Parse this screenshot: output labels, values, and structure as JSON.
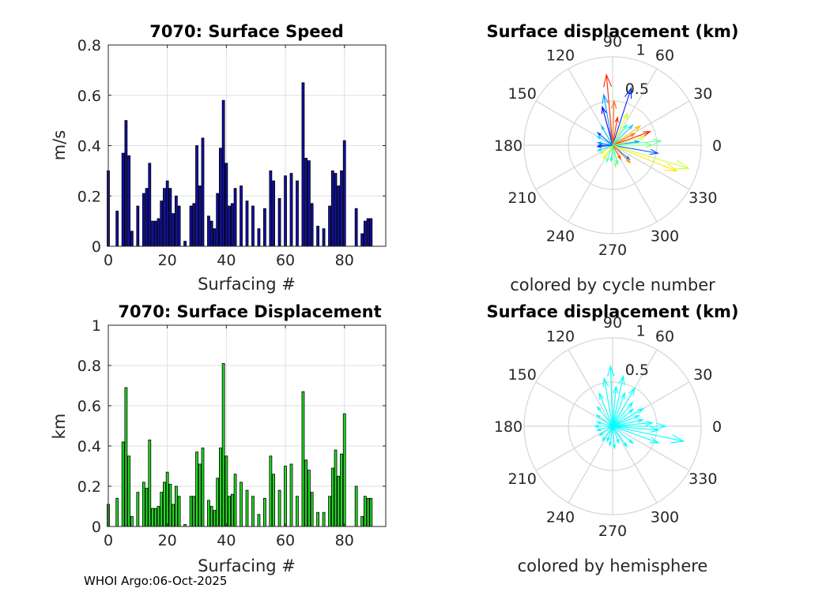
{
  "footer": "WHOI Argo:06-Oct-2025",
  "chart_data": [
    {
      "type": "bar",
      "id": "speed",
      "title": "7070: Surface Speed",
      "xlabel": "Surfacing #",
      "ylabel": "m/s",
      "xlim": [
        0,
        94
      ],
      "ylim": [
        0,
        0.8
      ],
      "xticks": [
        0,
        20,
        40,
        60,
        80
      ],
      "yticks": [
        0,
        0.2,
        0.4,
        0.6,
        0.8
      ],
      "ytick_labels": [
        "0",
        "0.2",
        "0.4",
        "0.6",
        "0.8"
      ],
      "color": "#1010a8",
      "x": [
        0,
        3,
        5,
        6,
        7,
        8,
        10,
        12,
        13,
        14,
        15,
        16,
        17,
        18,
        19,
        20,
        21,
        22,
        23,
        24,
        26,
        28,
        29,
        30,
        31,
        32,
        34,
        35,
        36,
        37,
        38,
        39,
        40,
        41,
        42,
        43,
        45,
        47,
        49,
        51,
        53,
        55,
        56,
        58,
        60,
        62,
        64,
        66,
        67,
        68,
        69,
        71,
        73,
        75,
        76,
        77,
        78,
        79,
        80,
        84,
        86,
        87,
        88,
        89
      ],
      "values": [
        0.3,
        0.14,
        0.37,
        0.5,
        0.36,
        0.06,
        0.16,
        0.21,
        0.23,
        0.33,
        0.1,
        0.1,
        0.11,
        0.18,
        0.23,
        0.26,
        0.23,
        0.13,
        0.2,
        0.16,
        0.02,
        0.16,
        0.17,
        0.4,
        0.24,
        0.43,
        0.12,
        0.1,
        0.07,
        0.21,
        0.39,
        0.58,
        0.33,
        0.16,
        0.17,
        0.23,
        0.24,
        0.18,
        0.16,
        0.07,
        0.15,
        0.3,
        0.26,
        0.19,
        0.28,
        0.29,
        0.26,
        0.65,
        0.35,
        0.34,
        0.17,
        0.08,
        0.07,
        0.16,
        0.3,
        0.29,
        0.24,
        0.3,
        0.42,
        0.15,
        0.05,
        0.1,
        0.11,
        0.11
      ]
    },
    {
      "type": "bar",
      "id": "disp",
      "title": "7070: Surface Displacement",
      "xlabel": "Surfacing #",
      "ylabel": "km",
      "xlim": [
        0,
        94
      ],
      "ylim": [
        0,
        1
      ],
      "xticks": [
        0,
        20,
        40,
        60,
        80
      ],
      "yticks": [
        0,
        0.2,
        0.4,
        0.6,
        0.8,
        1
      ],
      "ytick_labels": [
        "0",
        "0.2",
        "0.4",
        "0.6",
        "0.8",
        "1"
      ],
      "color": "#22dd22",
      "x": [
        0,
        3,
        5,
        6,
        7,
        8,
        10,
        12,
        13,
        14,
        15,
        16,
        17,
        18,
        19,
        20,
        21,
        22,
        23,
        24,
        26,
        28,
        29,
        30,
        31,
        32,
        34,
        35,
        36,
        37,
        38,
        39,
        40,
        41,
        42,
        43,
        45,
        47,
        49,
        51,
        53,
        55,
        56,
        58,
        60,
        62,
        64,
        66,
        67,
        68,
        69,
        71,
        73,
        75,
        76,
        77,
        78,
        79,
        80,
        84,
        86,
        87,
        88,
        89
      ],
      "values": [
        0.11,
        0.14,
        0.42,
        0.69,
        0.35,
        0.05,
        0.17,
        0.22,
        0.19,
        0.43,
        0.09,
        0.09,
        0.1,
        0.17,
        0.22,
        0.27,
        0.21,
        0.11,
        0.2,
        0.15,
        0.01,
        0.15,
        0.15,
        0.37,
        0.31,
        0.39,
        0.13,
        0.1,
        0.08,
        0.24,
        0.39,
        0.81,
        0.35,
        0.15,
        0.16,
        0.26,
        0.22,
        0.18,
        0.15,
        0.06,
        0.14,
        0.35,
        0.26,
        0.18,
        0.3,
        0.31,
        0.15,
        0.67,
        0.33,
        0.28,
        0.17,
        0.07,
        0.07,
        0.15,
        0.29,
        0.38,
        0.25,
        0.36,
        0.56,
        0.2,
        0.05,
        0.15,
        0.14,
        0.14
      ]
    },
    {
      "type": "polar-compass",
      "id": "polar1",
      "title": "Surface displacement (km)",
      "caption": "colored by cycle number",
      "rmax": 1,
      "r_ticks": [
        "0.5",
        "1"
      ],
      "angle_ticks": [
        "0",
        "30",
        "60",
        "90",
        "120",
        "150",
        "180",
        "210",
        "240",
        "270",
        "300",
        "330"
      ],
      "colormap": [
        "#0000ff",
        "#00ffff",
        "#ffff00",
        "#ff0000"
      ],
      "vectors": [
        {
          "angle": 0,
          "r": 0.45,
          "c": 0.5
        },
        {
          "angle": 350,
          "r": 0.52,
          "c": 0.1
        },
        {
          "angle": 343,
          "r": 0.9,
          "c": 0.6
        },
        {
          "angle": 338,
          "r": 0.78,
          "c": 0.7
        },
        {
          "angle": 320,
          "r": 0.25,
          "c": 0.15
        },
        {
          "angle": 315,
          "r": 0.28,
          "c": 0.8
        },
        {
          "angle": 300,
          "r": 0.18,
          "c": 0.9
        },
        {
          "angle": 285,
          "r": 0.22,
          "c": 0.4
        },
        {
          "angle": 278,
          "r": 0.25,
          "c": 0.55
        },
        {
          "angle": 265,
          "r": 0.18,
          "c": 0.35
        },
        {
          "angle": 250,
          "r": 0.2,
          "c": 0.45
        },
        {
          "angle": 235,
          "r": 0.18,
          "c": 0.65
        },
        {
          "angle": 215,
          "r": 0.17,
          "c": 0.6
        },
        {
          "angle": 200,
          "r": 0.18,
          "c": 0.3
        },
        {
          "angle": 185,
          "r": 0.17,
          "c": 0.05
        },
        {
          "angle": 180,
          "r": 0.16,
          "c": 0.12
        },
        {
          "angle": 170,
          "r": 0.17,
          "c": 0.18
        },
        {
          "angle": 150,
          "r": 0.2,
          "c": 0.3
        },
        {
          "angle": 140,
          "r": 0.22,
          "c": 0.1
        },
        {
          "angle": 120,
          "r": 0.25,
          "c": 0.25
        },
        {
          "angle": 105,
          "r": 0.45,
          "c": 0.0
        },
        {
          "angle": 100,
          "r": 0.58,
          "c": 0.2
        },
        {
          "angle": 95,
          "r": 0.8,
          "c": 0.95
        },
        {
          "angle": 88,
          "r": 0.5,
          "c": 0.85
        },
        {
          "angle": 80,
          "r": 0.32,
          "c": 0.95
        },
        {
          "angle": 72,
          "r": 0.68,
          "c": 0.05
        },
        {
          "angle": 65,
          "r": 0.4,
          "c": 0.62
        },
        {
          "angle": 55,
          "r": 0.28,
          "c": 0.4
        },
        {
          "angle": 45,
          "r": 0.32,
          "c": 0.28
        },
        {
          "angle": 35,
          "r": 0.38,
          "c": 0.75
        },
        {
          "angle": 28,
          "r": 0.28,
          "c": 0.85
        },
        {
          "angle": 20,
          "r": 0.45,
          "c": 0.98
        },
        {
          "angle": 15,
          "r": 0.38,
          "c": 0.6
        },
        {
          "angle": 8,
          "r": 0.3,
          "c": 0.2
        },
        {
          "angle": 5,
          "r": 0.55,
          "c": 0.45
        }
      ]
    },
    {
      "type": "polar-compass",
      "id": "polar2",
      "title": "Surface displacement (km)",
      "caption": "colored by hemisphere",
      "rmax": 1,
      "r_ticks": [
        "0.5",
        "1"
      ],
      "angle_ticks": [
        "0",
        "30",
        "60",
        "90",
        "120",
        "150",
        "180",
        "210",
        "240",
        "270",
        "300",
        "330"
      ],
      "color": "#00ffff",
      "vectors": [
        {
          "angle": 0,
          "r": 0.6
        },
        {
          "angle": 355,
          "r": 0.52
        },
        {
          "angle": 348,
          "r": 0.82
        },
        {
          "angle": 340,
          "r": 0.55
        },
        {
          "angle": 320,
          "r": 0.3
        },
        {
          "angle": 305,
          "r": 0.28
        },
        {
          "angle": 290,
          "r": 0.2
        },
        {
          "angle": 275,
          "r": 0.25
        },
        {
          "angle": 262,
          "r": 0.22
        },
        {
          "angle": 250,
          "r": 0.18
        },
        {
          "angle": 235,
          "r": 0.2
        },
        {
          "angle": 215,
          "r": 0.18
        },
        {
          "angle": 195,
          "r": 0.18
        },
        {
          "angle": 180,
          "r": 0.2
        },
        {
          "angle": 165,
          "r": 0.18
        },
        {
          "angle": 145,
          "r": 0.22
        },
        {
          "angle": 128,
          "r": 0.28
        },
        {
          "angle": 112,
          "r": 0.4
        },
        {
          "angle": 100,
          "r": 0.55
        },
        {
          "angle": 92,
          "r": 0.68
        },
        {
          "angle": 85,
          "r": 0.45
        },
        {
          "angle": 78,
          "r": 0.58
        },
        {
          "angle": 70,
          "r": 0.4
        },
        {
          "angle": 60,
          "r": 0.5
        },
        {
          "angle": 50,
          "r": 0.35
        },
        {
          "angle": 40,
          "r": 0.3
        },
        {
          "angle": 30,
          "r": 0.4
        },
        {
          "angle": 22,
          "r": 0.32
        },
        {
          "angle": 12,
          "r": 0.35
        },
        {
          "angle": 5,
          "r": 0.45
        }
      ]
    }
  ]
}
